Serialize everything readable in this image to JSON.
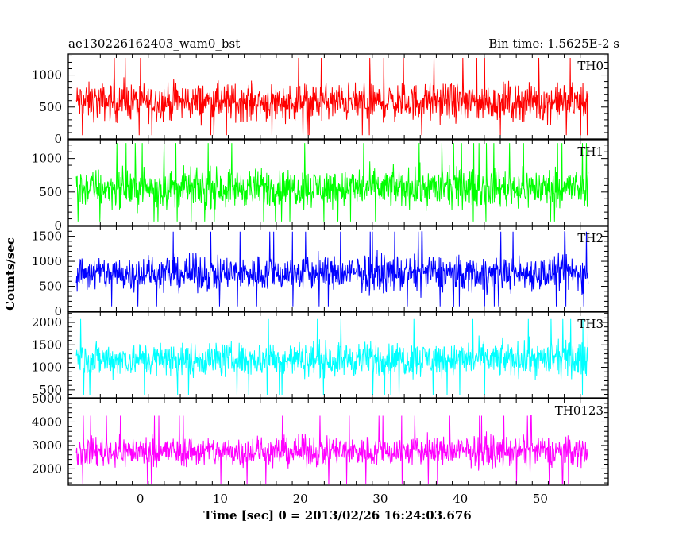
{
  "header": {
    "title": "ae130226162403_wam0_bst",
    "bin_time": "Bin time: 1.5625E-2 s"
  },
  "chart_data": {
    "type": "line",
    "title": "ae130226162403_wam0_bst",
    "xlabel": "Time [sec] 0 = 2013/02/26 16:24:03.676",
    "ylabel": "Counts/sec",
    "xlim": [
      -9,
      58.5
    ],
    "x_ticks": [
      0,
      10,
      20,
      30,
      40,
      50
    ],
    "x_data_range": [
      -8,
      56
    ],
    "bin_time_s": 0.015625,
    "grid": false,
    "series": [
      {
        "name": "TH0",
        "color": "#ff0000",
        "ylim": [
          0,
          1330
        ],
        "ticks": [
          0,
          500,
          1000
        ],
        "baseline": 580,
        "spread": 430,
        "min": 60,
        "max": 1330
      },
      {
        "name": "TH1",
        "color": "#00ff00",
        "ylim": [
          0,
          1280
        ],
        "ticks": [
          0,
          500,
          1000
        ],
        "baseline": 560,
        "spread": 420,
        "min": 60,
        "max": 1280
      },
      {
        "name": "TH2",
        "color": "#0000ff",
        "ylim": [
          0,
          1700
        ],
        "ticks": [
          0,
          500,
          1000,
          1500
        ],
        "baseline": 760,
        "spread": 520,
        "min": 100,
        "max": 1700
      },
      {
        "name": "TH3",
        "color": "#00ffff",
        "ylim": [
          320,
          2230
        ],
        "ticks": [
          500,
          1000,
          1500,
          2000
        ],
        "baseline": 1180,
        "spread": 560,
        "min": 380,
        "max": 2230
      },
      {
        "name": "TH0123",
        "color": "#ff00ff",
        "ylim": [
          1300,
          5000
        ],
        "ticks": [
          2000,
          3000,
          4000,
          5000
        ],
        "baseline": 2750,
        "spread": 950,
        "min": 1350,
        "max": 4950
      }
    ]
  }
}
